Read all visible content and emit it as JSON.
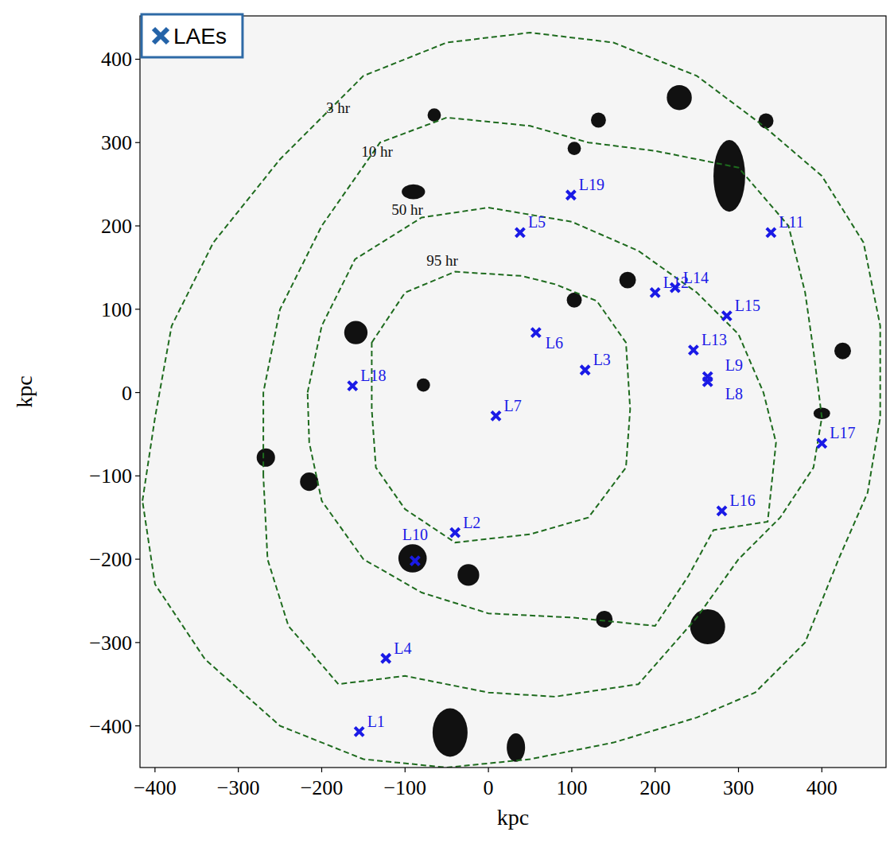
{
  "chart_data": {
    "type": "scatter",
    "xlabel": "kpc",
    "ylabel": "kpc",
    "xlim": [
      -418,
      477
    ],
    "ylim": [
      -450,
      452
    ],
    "xticks": [
      -400,
      -300,
      -200,
      -100,
      0,
      100,
      200,
      300,
      400
    ],
    "yticks": [
      -400,
      -300,
      -200,
      -100,
      0,
      100,
      200,
      300,
      400
    ],
    "legend": "upper left",
    "series": [
      {
        "name": "LAEs",
        "color": "#1a1ae6",
        "marker": "x",
        "labels": [
          "L1",
          "L2",
          "L3",
          "L4",
          "L5",
          "L6",
          "L7",
          "L8",
          "L9",
          "L10",
          "L11",
          "L12",
          "L13",
          "L14",
          "L15",
          "L16",
          "L17",
          "L18",
          "L19"
        ],
        "x": [
          -155,
          -40,
          116,
          -123,
          38,
          57,
          9,
          263,
          263,
          -88,
          339,
          200,
          246,
          224,
          286,
          280,
          400,
          -163,
          99
        ],
        "values": [
          -407,
          -168,
          27,
          -319,
          192,
          72,
          -28,
          13,
          19,
          -202,
          192,
          120,
          51,
          126,
          92,
          -142,
          -61,
          8,
          237
        ]
      }
    ],
    "contours": [
      {
        "label": "3 hr",
        "color": "#1e6b1e",
        "line_style": "dashed",
        "x": [
          -415,
          -400,
          -380,
          -330,
          -250,
          -150,
          -50,
          50,
          150,
          250,
          330,
          400,
          450,
          470,
          470,
          455,
          420,
          380,
          320,
          250,
          150,
          50,
          -50,
          -150,
          -250,
          -340,
          -400
        ],
        "y": [
          -130,
          -30,
          80,
          180,
          280,
          380,
          420,
          432,
          420,
          380,
          320,
          260,
          180,
          80,
          -30,
          -120,
          -200,
          -300,
          -360,
          -390,
          -420,
          -440,
          -450,
          -440,
          -400,
          -320,
          -230
        ]
      },
      {
        "label": "10 hr",
        "color": "#1e6b1e",
        "line_style": "dashed",
        "x": [
          -270,
          -270,
          -250,
          -200,
          -130,
          -50,
          50,
          120,
          200,
          300,
          360,
          380,
          390,
          400,
          390,
          350,
          300,
          250,
          180,
          80,
          0,
          -100,
          -180,
          -240,
          -265
        ],
        "y": [
          -100,
          0,
          100,
          200,
          300,
          330,
          320,
          300,
          290,
          270,
          200,
          120,
          50,
          -30,
          -90,
          -150,
          -200,
          -270,
          -350,
          -365,
          -360,
          -340,
          -350,
          -280,
          -200
        ]
      },
      {
        "label": "50 hr",
        "color": "#1e6b1e",
        "line_style": "dashed",
        "x": [
          -217,
          -200,
          -160,
          -80,
          0,
          100,
          180,
          250,
          300,
          330,
          345,
          335,
          270,
          240,
          200,
          100,
          0,
          -80,
          -150,
          -200,
          -215
        ],
        "y": [
          0,
          80,
          160,
          210,
          222,
          205,
          170,
          120,
          70,
          0,
          -60,
          -155,
          -165,
          -220,
          -280,
          -270,
          -265,
          -240,
          -200,
          -130,
          -60
        ]
      },
      {
        "label": "95 hr",
        "color": "#1e6b1e",
        "line_style": "dashed",
        "x": [
          -140,
          -100,
          -40,
          40,
          80,
          130,
          165,
          170,
          165,
          120,
          50,
          -40,
          -100,
          -135,
          -140
        ],
        "y": [
          60,
          120,
          145,
          140,
          130,
          110,
          60,
          -20,
          -90,
          -150,
          -170,
          -180,
          -140,
          -90,
          -20
        ]
      }
    ],
    "galaxies": {
      "x": [
        229,
        289,
        -159,
        -90,
        -267,
        -215,
        -91,
        -24,
        263,
        -46,
        33,
        425,
        167,
        103,
        139,
        333,
        132,
        -65,
        103,
        -78,
        400
      ],
      "y": [
        354,
        260,
        72,
        241,
        -78,
        -107,
        -199,
        -219,
        -281,
        -408,
        -426,
        50,
        135,
        111,
        -272,
        326,
        327,
        333,
        293,
        9,
        -25
      ],
      "rx": [
        15,
        19,
        14,
        14,
        11,
        11,
        17,
        13,
        21,
        21,
        11,
        10,
        10,
        9,
        10,
        9,
        9,
        8,
        8,
        8,
        10
      ],
      "ry": [
        15,
        43,
        14,
        9,
        11,
        11,
        17,
        13,
        21,
        29,
        17,
        10,
        10,
        9,
        10,
        9,
        9,
        8,
        8,
        8,
        7
      ]
    }
  }
}
